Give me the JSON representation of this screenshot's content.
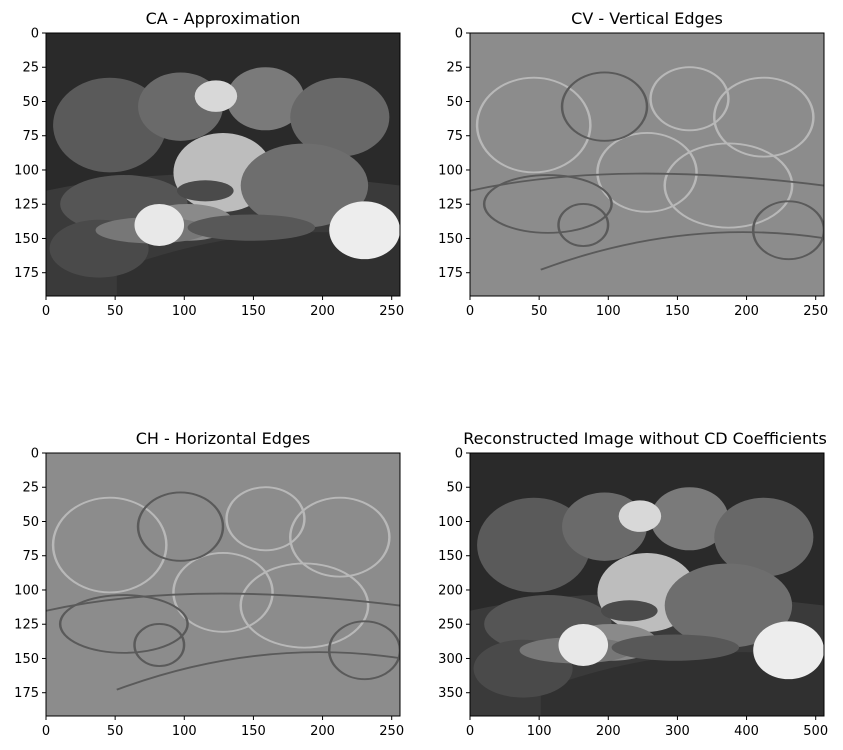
{
  "chart_data": [
    {
      "type": "heatmap",
      "title": "CA - Approximation",
      "colormap": "gray",
      "image_width": 256,
      "image_height": 192,
      "xlim": [
        0,
        256
      ],
      "ylim": [
        192,
        0
      ],
      "xticks": [
        0,
        50,
        100,
        150,
        200,
        250
      ],
      "yticks": [
        0,
        25,
        50,
        75,
        100,
        125,
        150,
        175
      ],
      "style": "approximation"
    },
    {
      "type": "heatmap",
      "title": "CV - Vertical Edges",
      "colormap": "gray",
      "image_width": 256,
      "image_height": 192,
      "xlim": [
        0,
        256
      ],
      "ylim": [
        192,
        0
      ],
      "xticks": [
        0,
        50,
        100,
        150,
        200,
        250
      ],
      "yticks": [
        0,
        25,
        50,
        75,
        100,
        125,
        150,
        175
      ],
      "style": "edges"
    },
    {
      "type": "heatmap",
      "title": "CH - Horizontal Edges",
      "colormap": "gray",
      "image_width": 256,
      "image_height": 192,
      "xlim": [
        0,
        256
      ],
      "ylim": [
        192,
        0
      ],
      "xticks": [
        0,
        50,
        100,
        150,
        200,
        250
      ],
      "yticks": [
        0,
        25,
        50,
        75,
        100,
        125,
        150,
        175
      ],
      "style": "edges"
    },
    {
      "type": "heatmap",
      "title": "Reconstructed Image without CD Coefficients",
      "colormap": "gray",
      "image_width": 512,
      "image_height": 384,
      "xlim": [
        0,
        512
      ],
      "ylim": [
        384,
        0
      ],
      "xticks": [
        0,
        100,
        200,
        300,
        400,
        500
      ],
      "yticks": [
        0,
        50,
        100,
        150,
        200,
        250,
        300,
        350
      ],
      "style": "approximation"
    }
  ]
}
